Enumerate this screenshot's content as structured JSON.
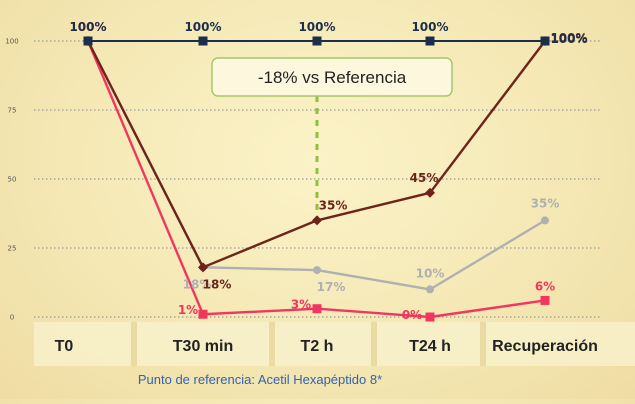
{
  "chart_data": {
    "type": "line",
    "categories": [
      "T0",
      "T30 min",
      "T2 h",
      "T24 h",
      "Recuperación"
    ],
    "ylim": [
      0,
      100
    ],
    "yticks": [
      0,
      25,
      50,
      75,
      100
    ],
    "grid": true,
    "series": [
      {
        "color": "#1b2f4c",
        "marker": "square",
        "values": [
          100,
          100,
          100,
          100,
          100
        ],
        "labels": [
          "100%",
          "100%",
          "100%",
          "100%",
          "100%"
        ]
      },
      {
        "color": "#6e2419",
        "marker": "diamond",
        "values": [
          100,
          18,
          35,
          45,
          100
        ],
        "labels": [
          "",
          "18%",
          "35%",
          "45%",
          "100%"
        ]
      },
      {
        "color": "#b0b0b0",
        "marker": "circle",
        "values": [
          100,
          18,
          17,
          10,
          35
        ],
        "labels": [
          "",
          "18%",
          "17%",
          "10%",
          "35%"
        ]
      },
      {
        "color": "#f2375f",
        "marker": "square",
        "values": [
          100,
          1,
          3,
          0,
          6
        ],
        "labels": [
          "100%",
          "1%",
          "3%",
          "0%",
          "6%"
        ]
      }
    ],
    "annotation": {
      "text": "-18%  vs Referencia",
      "category": "T2 h"
    },
    "caption": "Punto de referencia: Acetil Hexapéptido 8*"
  }
}
